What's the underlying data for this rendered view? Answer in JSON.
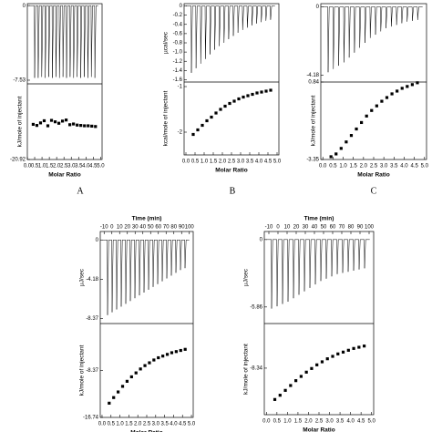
{
  "chart_data": [
    {
      "type": "itc",
      "label": "A",
      "top_ylabel": null,
      "bottom_ylabel": "kJ/mole of injectant",
      "xlabel": "Molar Ratio",
      "xlim": [
        0,
        5.1
      ],
      "xticks": [
        {
          "value": 0,
          "label": "0.0"
        },
        0.5,
        {
          "value": 1,
          "label": "1.0"
        },
        1.5,
        {
          "value": 2,
          "label": "2.0"
        },
        2.5,
        {
          "value": 3,
          "label": "3.0"
        },
        3.5,
        {
          "value": 4,
          "label": "4.0"
        },
        4.5,
        {
          "value": 5,
          "label": "5.0"
        }
      ],
      "top": {
        "ylim": [
          -7.9,
          0.2
        ],
        "yticks": [
          0,
          -7.53
        ],
        "peaks": [
          -7.3,
          -7.3,
          -7.2,
          -7.3,
          -7.2,
          -7.3,
          -7.2,
          -7.3,
          -7.2,
          -7.3,
          -7.2,
          -7.3,
          -7.2,
          -7.3,
          -7.2,
          -7.3,
          -7.2,
          -7.3
        ]
      },
      "bottom": {
        "ylim": [
          -20.92,
          0
        ],
        "yticks": [
          -20.92
        ],
        "x": [
          0.4,
          0.65,
          0.9,
          1.15,
          1.4,
          1.65,
          1.9,
          2.15,
          2.4,
          2.65,
          2.9,
          3.15,
          3.4,
          3.65,
          3.9,
          4.15,
          4.4,
          4.65
        ],
        "values": [
          -11.2,
          -11.5,
          -10.8,
          -10.2,
          -11.6,
          -10.1,
          -10.5,
          -10.9,
          -10.3,
          -10.0,
          -11.3,
          -11.1,
          -11.4,
          -11.5,
          -11.6,
          -11.6,
          -11.7,
          -11.8
        ]
      }
    },
    {
      "type": "itc",
      "label": "B",
      "top_ylabel": "µcal/sec",
      "bottom_ylabel": "kcal/mole of injectant",
      "xlabel": "Molar Ratio",
      "xlim": [
        -0.1,
        5.1
      ],
      "xticks": [
        {
          "value": 0,
          "label": "0.0"
        },
        0.5,
        {
          "value": 1,
          "label": "1.0"
        },
        1.5,
        {
          "value": 2,
          "label": "2.0"
        },
        2.5,
        {
          "value": 3,
          "label": "3.0"
        },
        3.5,
        {
          "value": 4,
          "label": "4.0"
        },
        4.5,
        {
          "value": 5,
          "label": "5.0"
        }
      ],
      "top": {
        "ylim": [
          -1.65,
          0.05
        ],
        "yticks": [
          0,
          -0.2,
          -0.4,
          -0.6,
          -0.8,
          {
            "value": -1,
            "label": "-1.0"
          },
          -1.2,
          -1.4,
          -1.6
        ],
        "peaks": [
          -1.45,
          -1.35,
          -1.25,
          -1.15,
          -1.05,
          -0.95,
          -0.87,
          -0.8,
          -0.72,
          -0.65,
          -0.58,
          -0.52,
          -0.47,
          -0.42,
          -0.38,
          -0.35,
          -0.32,
          -0.3
        ]
      },
      "bottom": {
        "ylim": [
          -2.5,
          -0.9
        ],
        "yticks": [
          -1,
          -2
        ],
        "x": [
          0.4,
          0.65,
          0.9,
          1.15,
          1.4,
          1.65,
          1.9,
          2.15,
          2.4,
          2.65,
          2.9,
          3.15,
          3.4,
          3.65,
          3.9,
          4.15,
          4.4,
          4.65
        ],
        "values": [
          -2.05,
          -1.95,
          -1.85,
          -1.75,
          -1.67,
          -1.58,
          -1.5,
          -1.43,
          -1.37,
          -1.32,
          -1.27,
          -1.23,
          -1.2,
          -1.17,
          -1.14,
          -1.12,
          -1.1,
          -1.08
        ]
      }
    },
    {
      "type": "itc",
      "label": "C",
      "top_ylabel": null,
      "bottom_ylabel": "kJ/mole of injectant",
      "xlabel": "Molar Ratio",
      "xlim": [
        -0.1,
        5.1
      ],
      "xticks": [
        {
          "value": 0,
          "label": "0.0"
        },
        0.5,
        {
          "value": 1,
          "label": "1.0"
        },
        1.5,
        {
          "value": 2,
          "label": "2.0"
        },
        2.5,
        {
          "value": 3,
          "label": "3.0"
        },
        3.5,
        {
          "value": 4,
          "label": "4.0"
        },
        4.5,
        {
          "value": 5,
          "label": "5.0"
        }
      ],
      "top": {
        "ylim": [
          -4.6,
          0.2
        ],
        "yticks": [
          0,
          -4.18
        ],
        "peaks": [
          -4.0,
          -3.8,
          -3.6,
          -3.4,
          -3.1,
          -2.8,
          -2.5,
          -2.2,
          -1.9,
          -1.7,
          -1.5,
          -1.3,
          -1.2,
          -1.1,
          -1.0,
          -0.9,
          -0.85,
          -0.8
        ]
      },
      "bottom": {
        "ylim": [
          -3.35,
          0.84
        ],
        "yticks": [
          0.84,
          -3.35
        ],
        "x": [
          0.4,
          0.65,
          0.9,
          1.15,
          1.4,
          1.65,
          1.9,
          2.15,
          2.4,
          2.65,
          2.9,
          3.15,
          3.4,
          3.65,
          3.9,
          4.15,
          4.4,
          4.65
        ],
        "values": [
          -3.2,
          -3.05,
          -2.75,
          -2.4,
          -2.05,
          -1.7,
          -1.35,
          -1.0,
          -0.7,
          -0.45,
          -0.2,
          0.0,
          0.2,
          0.35,
          0.5,
          0.6,
          0.7,
          0.8
        ]
      }
    },
    {
      "type": "itc",
      "label": null,
      "top_ylabel": "µJ/sec",
      "bottom_ylabel": "kJ/mole of injectant",
      "xlabel": "Molar Ratio",
      "time_label": "Time (min)",
      "timelim": [
        -15,
        105
      ],
      "timeticks": [
        -10,
        0,
        10,
        20,
        30,
        40,
        50,
        60,
        70,
        80,
        90,
        100
      ],
      "xlim": [
        -0.1,
        5.1
      ],
      "xticks": [
        {
          "value": 0,
          "label": "0.0"
        },
        0.5,
        {
          "value": 1,
          "label": "1.0"
        },
        1.5,
        {
          "value": 2,
          "label": "2.0"
        },
        2.5,
        {
          "value": 3,
          "label": "3.0"
        },
        3.5,
        {
          "value": 4,
          "label": "4.0"
        },
        4.5,
        {
          "value": 5,
          "label": "5.0"
        }
      ],
      "top": {
        "ylim": [
          -8.9,
          0.9
        ],
        "yticks": [
          0,
          -4.18,
          -8.37
        ],
        "peaks": [
          -8.0,
          -7.7,
          -7.4,
          -7.1,
          -6.8,
          -6.5,
          -6.2,
          -5.9,
          -5.6,
          -5.3,
          -5.0,
          -4.7,
          -4.4,
          -4.1,
          -3.8,
          -3.5,
          -3.2,
          -3.0
        ]
      },
      "bottom": {
        "ylim": [
          -16.74,
          0
        ],
        "yticks": [
          -8.37,
          -16.74
        ],
        "x": [
          0.4,
          0.65,
          0.9,
          1.15,
          1.4,
          1.65,
          1.9,
          2.15,
          2.4,
          2.65,
          2.9,
          3.15,
          3.4,
          3.65,
          3.9,
          4.15,
          4.4,
          4.65
        ],
        "values": [
          -14.2,
          -13.2,
          -12.2,
          -11.2,
          -10.3,
          -9.5,
          -8.8,
          -8.1,
          -7.5,
          -7.0,
          -6.5,
          -6.1,
          -5.8,
          -5.5,
          -5.2,
          -5.0,
          -4.8,
          -4.6
        ]
      }
    },
    {
      "type": "itc",
      "label": null,
      "top_ylabel": "µJ/sec",
      "bottom_ylabel": "kJ/mole of injectant",
      "xlabel": "Molar Ratio",
      "time_label": "Time (min)",
      "timelim": [
        -15,
        105
      ],
      "timeticks": [
        -10,
        0,
        10,
        20,
        30,
        40,
        50,
        60,
        70,
        80,
        90,
        100
      ],
      "xlim": [
        -0.1,
        5.1
      ],
      "xticks": [
        {
          "value": 0,
          "label": "0.0"
        },
        0.5,
        {
          "value": 1,
          "label": "1.0"
        },
        1.5,
        {
          "value": 2,
          "label": "2.0"
        },
        2.5,
        {
          "value": 3,
          "label": "3.0"
        },
        3.5,
        {
          "value": 4,
          "label": "4.0"
        },
        4.5,
        {
          "value": 5,
          "label": "5.0"
        }
      ],
      "top": {
        "ylim": [
          -7.3,
          0.7
        ],
        "yticks": [
          0,
          -5.86
        ],
        "peaks": [
          -6.0,
          -5.8,
          -5.6,
          -5.4,
          -5.1,
          -4.8,
          -4.5,
          -4.2,
          -3.9,
          -3.6,
          -3.4,
          -3.2,
          -3.0,
          -2.9,
          -2.8,
          -2.7,
          -2.6,
          -2.5
        ]
      },
      "bottom": {
        "ylim": [
          -16,
          -1
        ],
        "yticks": [
          -8.34
        ],
        "x": [
          0.4,
          0.65,
          0.9,
          1.15,
          1.4,
          1.65,
          1.9,
          2.15,
          2.4,
          2.65,
          2.9,
          3.15,
          3.4,
          3.65,
          3.9,
          4.15,
          4.4,
          4.65
        ],
        "values": [
          -13.5,
          -12.8,
          -12.0,
          -11.2,
          -10.4,
          -9.7,
          -9.0,
          -8.4,
          -7.8,
          -7.3,
          -6.8,
          -6.4,
          -6.0,
          -5.7,
          -5.4,
          -5.1,
          -4.9,
          -4.7
        ]
      }
    }
  ]
}
